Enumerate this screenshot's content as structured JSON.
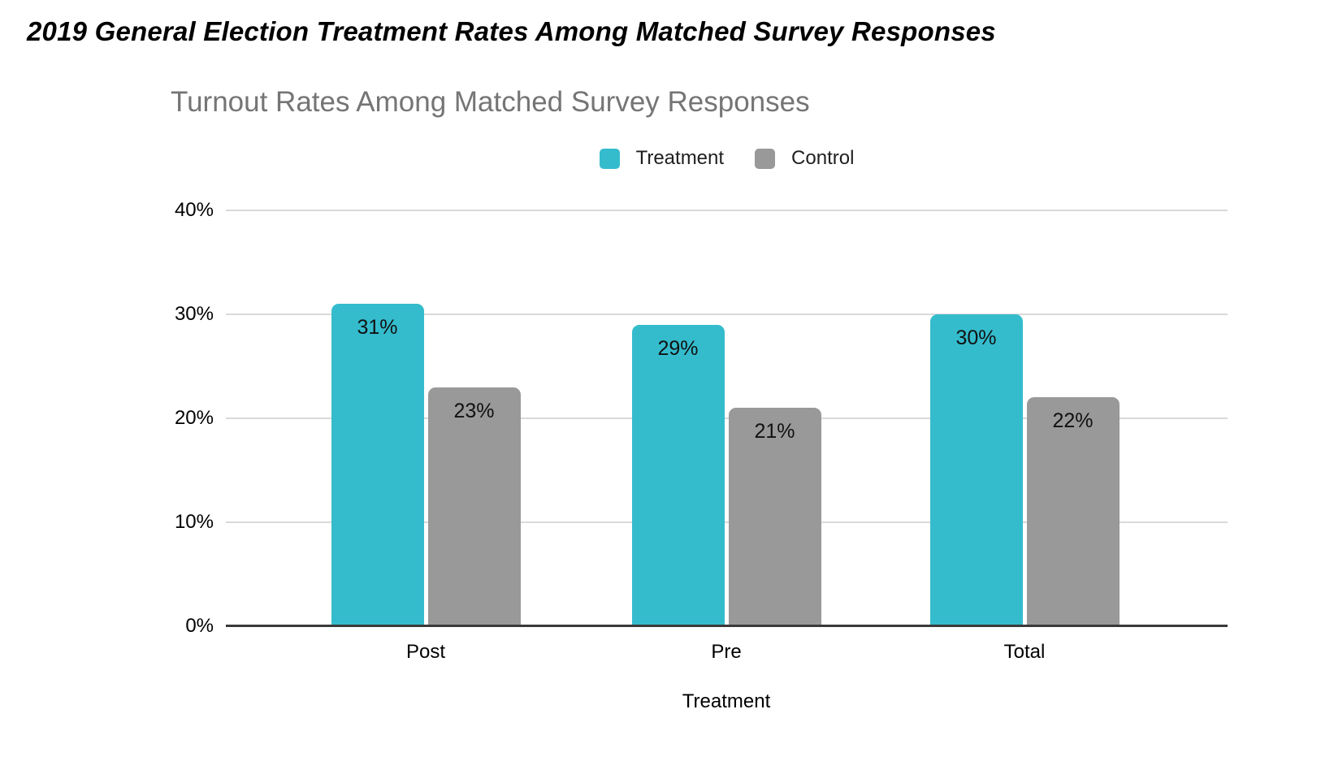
{
  "page": {
    "title": "2019 General Election Treatment Rates Among Matched Survey Responses"
  },
  "chart_data": {
    "type": "bar",
    "title": "Turnout Rates Among Matched Survey Responses",
    "categories": [
      "Post",
      "Pre",
      "Total"
    ],
    "series": [
      {
        "name": "Treatment",
        "color": "#34bccd",
        "values": [
          31,
          29,
          30
        ],
        "labels": [
          "31%",
          "29%",
          "30%"
        ]
      },
      {
        "name": "Control",
        "color": "#999999",
        "values": [
          23,
          21,
          22
        ],
        "labels": [
          "23%",
          "21%",
          "22%"
        ]
      }
    ],
    "xlabel": "Treatment",
    "ylabel": "",
    "ylim": [
      0,
      40
    ],
    "y_ticks": [
      "0%",
      "10%",
      "20%",
      "30%",
      "40%"
    ],
    "grid": true,
    "legend_position": "top",
    "value_label_position": "inside-top"
  },
  "colors": {
    "treatment": "#34bccd",
    "control": "#999999",
    "gridline": "#d9d9d9",
    "axis_line": "#3a3a3a",
    "chart_title_text": "#757575",
    "label_text": "#000000"
  }
}
